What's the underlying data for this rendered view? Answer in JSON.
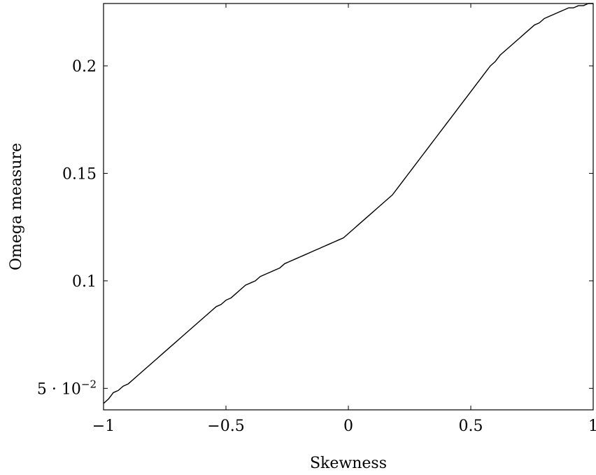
{
  "chart_data": {
    "type": "line",
    "title": "",
    "xlabel": "Skewness",
    "ylabel": "Omega measure",
    "xlim": [
      -1,
      1
    ],
    "ylim": [
      0.04,
      0.229
    ],
    "grid": false,
    "legend": "none",
    "line_color": "#000000",
    "x_ticks": [
      {
        "value": -1,
        "label": "−1"
      },
      {
        "value": -0.5,
        "label": "−0.5"
      },
      {
        "value": 0,
        "label": "0"
      },
      {
        "value": 0.5,
        "label": "0.5"
      },
      {
        "value": 1,
        "label": "1"
      }
    ],
    "y_ticks": [
      {
        "value": 0.05,
        "label_base": "5 · 10",
        "label_exp": "−2"
      },
      {
        "value": 0.1,
        "label": "0.1"
      },
      {
        "value": 0.15,
        "label": "0.15"
      },
      {
        "value": 0.2,
        "label": "0.2"
      }
    ],
    "series": [
      {
        "x": [
          -1.0,
          -0.98,
          -0.96,
          -0.94,
          -0.92,
          -0.9,
          -0.88,
          -0.86,
          -0.84,
          -0.82,
          -0.8,
          -0.78,
          -0.76,
          -0.74,
          -0.72,
          -0.7,
          -0.68,
          -0.66,
          -0.64,
          -0.62,
          -0.6,
          -0.58,
          -0.56,
          -0.54,
          -0.52,
          -0.5,
          -0.48,
          -0.46,
          -0.44,
          -0.42,
          -0.4,
          -0.38,
          -0.36,
          -0.34,
          -0.32,
          -0.3,
          -0.28,
          -0.26,
          -0.24,
          -0.22,
          -0.2,
          -0.18,
          -0.16,
          -0.14,
          -0.12,
          -0.1,
          -0.08,
          -0.06,
          -0.04,
          -0.02,
          0.0,
          0.02,
          0.04,
          0.06,
          0.08,
          0.1,
          0.12,
          0.14,
          0.16,
          0.18,
          0.2,
          0.22,
          0.24,
          0.26,
          0.28,
          0.3,
          0.32,
          0.34,
          0.36,
          0.38,
          0.4,
          0.42,
          0.44,
          0.46,
          0.48,
          0.5,
          0.52,
          0.54,
          0.56,
          0.58,
          0.6,
          0.62,
          0.64,
          0.66,
          0.68,
          0.7,
          0.72,
          0.74,
          0.76,
          0.78,
          0.8,
          0.82,
          0.84,
          0.86,
          0.88,
          0.9,
          0.92,
          0.94,
          0.96,
          0.98,
          1.0
        ],
        "y": [
          0.043,
          0.045,
          0.048,
          0.049,
          0.051,
          0.052,
          0.054,
          0.056,
          0.058,
          0.06,
          0.062,
          0.064,
          0.066,
          0.068,
          0.07,
          0.072,
          0.074,
          0.076,
          0.078,
          0.08,
          0.082,
          0.084,
          0.086,
          0.088,
          0.089,
          0.091,
          0.092,
          0.094,
          0.096,
          0.098,
          0.099,
          0.1,
          0.102,
          0.103,
          0.104,
          0.105,
          0.106,
          0.108,
          0.109,
          0.11,
          0.111,
          0.112,
          0.113,
          0.114,
          0.115,
          0.116,
          0.117,
          0.118,
          0.119,
          0.12,
          0.122,
          0.124,
          0.126,
          0.128,
          0.13,
          0.132,
          0.134,
          0.136,
          0.138,
          0.14,
          0.143,
          0.146,
          0.149,
          0.152,
          0.155,
          0.158,
          0.161,
          0.164,
          0.167,
          0.17,
          0.173,
          0.176,
          0.179,
          0.182,
          0.185,
          0.188,
          0.191,
          0.194,
          0.197,
          0.2,
          0.202,
          0.205,
          0.207,
          0.209,
          0.211,
          0.213,
          0.215,
          0.217,
          0.219,
          0.22,
          0.222,
          0.223,
          0.224,
          0.225,
          0.226,
          0.227,
          0.227,
          0.228,
          0.228,
          0.229,
          0.229
        ]
      }
    ]
  }
}
